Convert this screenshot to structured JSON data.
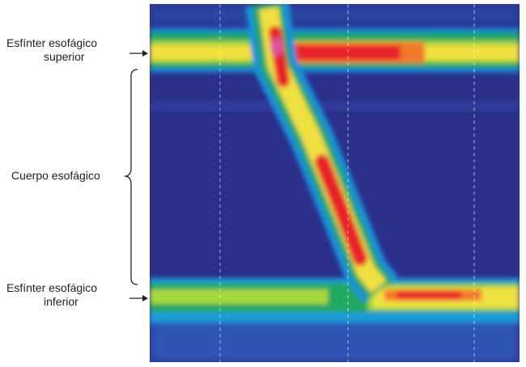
{
  "labels": [
    {
      "lines": [
        "Esfínter esofágico",
        "superior"
      ]
    },
    {
      "lines": [
        "Cuerpo esofágico"
      ]
    },
    {
      "lines": [
        "Esfínter esofágico",
        "inferior"
      ]
    }
  ]
}
